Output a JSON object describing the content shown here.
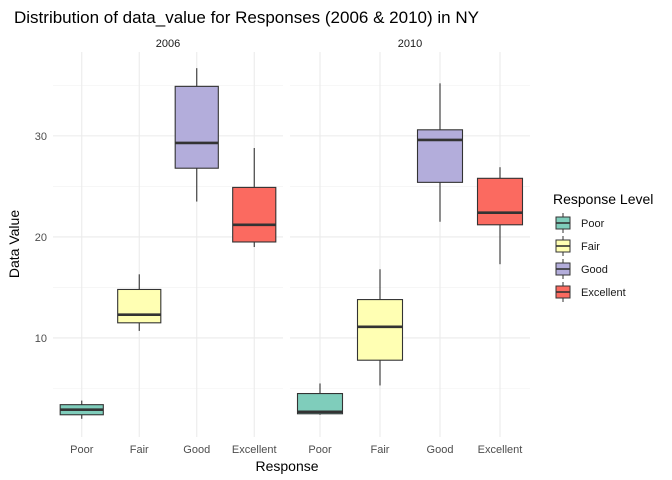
{
  "chart_data": {
    "type": "boxplot",
    "title": "Distribution of data_value for Responses (2006 & 2010) in NY",
    "xlabel": "Response",
    "ylabel": "Data Value",
    "categories": [
      "Poor",
      "Fair",
      "Good",
      "Excellent"
    ],
    "ylim": [
      0.2,
      38.3
    ],
    "yticks": [
      10,
      20,
      30
    ],
    "grid": true,
    "facets": [
      {
        "label": "2006",
        "boxes": [
          {
            "category": "Poor",
            "min": 2.0,
            "q1": 2.4,
            "median": 2.9,
            "q3": 3.4,
            "max": 3.8
          },
          {
            "category": "Fair",
            "min": 10.7,
            "q1": 11.5,
            "median": 12.3,
            "q3": 14.8,
            "max": 16.3
          },
          {
            "category": "Good",
            "min": 23.5,
            "q1": 26.8,
            "median": 29.3,
            "q3": 34.9,
            "max": 36.7
          },
          {
            "category": "Excellent",
            "min": 19.0,
            "q1": 19.5,
            "median": 21.2,
            "q3": 24.9,
            "max": 28.8
          }
        ]
      },
      {
        "label": "2010",
        "boxes": [
          {
            "category": "Poor",
            "min": 2.4,
            "q1": 2.5,
            "median": 2.7,
            "q3": 4.5,
            "max": 5.5
          },
          {
            "category": "Fair",
            "min": 5.3,
            "q1": 7.8,
            "median": 11.1,
            "q3": 13.8,
            "max": 16.8
          },
          {
            "category": "Good",
            "min": 21.5,
            "q1": 25.4,
            "median": 29.6,
            "q3": 30.6,
            "max": 35.2
          },
          {
            "category": "Excellent",
            "min": 17.3,
            "q1": 21.2,
            "median": 22.4,
            "q3": 25.8,
            "max": 26.9
          }
        ]
      }
    ],
    "legend": {
      "title": "Response Level",
      "position": "right",
      "items": [
        {
          "label": "Poor",
          "color": "#7fcdbb"
        },
        {
          "label": "Fair",
          "color": "#ffffb3"
        },
        {
          "label": "Good",
          "color": "#b3addb"
        },
        {
          "label": "Excellent",
          "color": "#fb6a60"
        }
      ]
    }
  }
}
